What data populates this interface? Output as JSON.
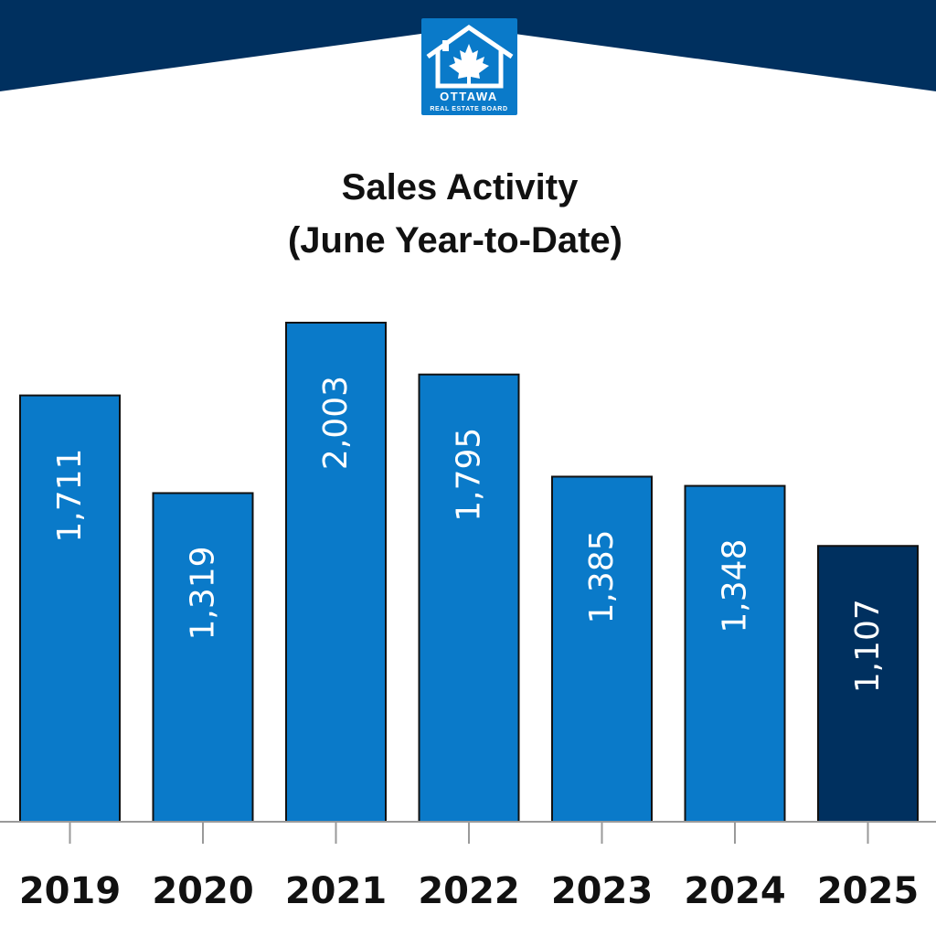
{
  "branding": {
    "logo_line1": "OTTAWA",
    "logo_line2": "REAL ESTATE BOARD",
    "header_color": "#00305f",
    "logo_color": "#0a7ac9"
  },
  "chart_data": {
    "type": "bar",
    "title": "Sales Activity",
    "subtitle": "(June Year-to-Date)",
    "categories": [
      "2019",
      "2020",
      "2021",
      "2022",
      "2023",
      "2024",
      "2025"
    ],
    "values": [
      1711,
      1319,
      2003,
      1795,
      1385,
      1348,
      1107
    ],
    "value_labels": [
      "1,711",
      "1,319",
      "2,003",
      "1,795",
      "1,385",
      "1,348",
      "1,107"
    ],
    "bar_color": "#0a7ac9",
    "highlight_color": "#00305f",
    "highlight_index": 6,
    "ylim": [
      0,
      2003
    ],
    "grid": false,
    "legend": "none"
  }
}
